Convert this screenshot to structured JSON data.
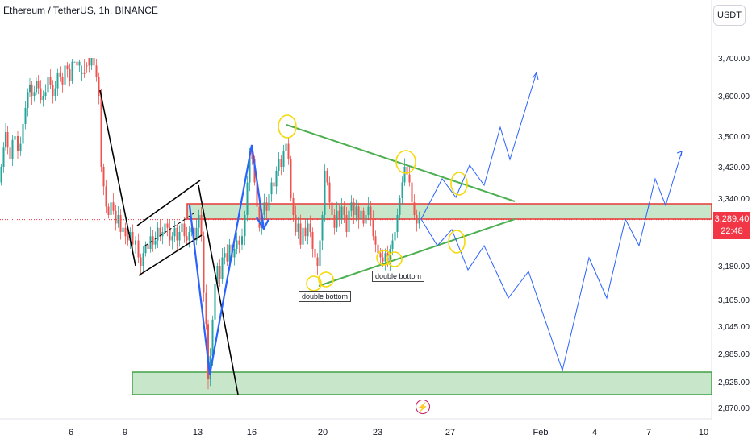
{
  "header": {
    "title": "Ethereum / TetherUS, 1h, BINANCE",
    "currency": "USDT"
  },
  "last_price": {
    "value": "3,289.40",
    "countdown": "22:48"
  },
  "annotations": {
    "left": "double bottom",
    "right": "double bottom"
  },
  "colors": {
    "up": "#26a69a",
    "down": "#ef5350",
    "zone_fill": "#c8e6c9",
    "zone_border_green": "#43a047",
    "zone_border_red": "#e53935",
    "projection": "#2962ff",
    "pattern": "#000000",
    "triangle": "#4caf50",
    "highlight": "#ffeb3b",
    "price_tag": "#f23645"
  },
  "chart_data": {
    "type": "candlestick",
    "title": "Ethereum / TetherUS, 1h, BINANCE",
    "x_ticks": [
      "6",
      "9",
      "13",
      "16",
      "20",
      "23",
      "27",
      "Feb",
      "4",
      "7",
      "10"
    ],
    "y_ticks": [
      3700,
      3600,
      3500,
      3420,
      3340,
      3180,
      3105,
      3045,
      2985,
      2925,
      2870
    ],
    "y_tick_labels": [
      "3,700.00",
      "3,600.00",
      "3,500.00",
      "3,420.00",
      "3,340.00",
      "3,180.00",
      "3,105.00",
      "3,045.00",
      "2,985.00",
      "2,925.00",
      "2,870.00"
    ],
    "ylim": [
      2860,
      3780
    ],
    "last_price": 3289.4,
    "price_path": [
      [
        0,
        3380
      ],
      [
        3,
        3420
      ],
      [
        6,
        3470
      ],
      [
        8,
        3510
      ],
      [
        11,
        3470
      ],
      [
        14,
        3440
      ],
      [
        17,
        3490
      ],
      [
        20,
        3500
      ],
      [
        24,
        3460
      ],
      [
        27,
        3480
      ],
      [
        30,
        3530
      ],
      [
        33,
        3570
      ],
      [
        36,
        3610
      ],
      [
        38,
        3630
      ],
      [
        41,
        3600
      ],
      [
        44,
        3610
      ],
      [
        46,
        3640
      ],
      [
        49,
        3620
      ],
      [
        52,
        3590
      ],
      [
        55,
        3600
      ],
      [
        58,
        3610
      ],
      [
        61,
        3650
      ],
      [
        64,
        3630
      ],
      [
        67,
        3600
      ],
      [
        70,
        3620
      ],
      [
        73,
        3660
      ],
      [
        76,
        3650
      ],
      [
        79,
        3630
      ],
      [
        82,
        3680
      ],
      [
        85,
        3670
      ],
      [
        88,
        3640
      ],
      [
        91,
        3690
      ],
      [
        94,
        3710
      ],
      [
        97,
        3680
      ],
      [
        100,
        3690
      ],
      [
        103,
        3740
      ],
      [
        106,
        3720
      ],
      [
        109,
        3700
      ],
      [
        112,
        3680
      ],
      [
        115,
        3700
      ],
      [
        118,
        3680
      ],
      [
        121,
        3650
      ],
      [
        124,
        3600
      ],
      [
        127,
        3420
      ],
      [
        130,
        3370
      ],
      [
        133,
        3320
      ],
      [
        136,
        3300
      ],
      [
        139,
        3330
      ],
      [
        142,
        3310
      ],
      [
        145,
        3280
      ],
      [
        148,
        3300
      ],
      [
        151,
        3260
      ],
      [
        154,
        3270
      ],
      [
        157,
        3250
      ],
      [
        160,
        3240
      ],
      [
        163,
        3260
      ],
      [
        166,
        3230
      ],
      [
        170,
        3240
      ],
      [
        173,
        3200
      ],
      [
        176,
        3180
      ],
      [
        179,
        3210
      ],
      [
        182,
        3230
      ],
      [
        185,
        3220
      ],
      [
        188,
        3250
      ],
      [
        191,
        3230
      ],
      [
        194,
        3240
      ],
      [
        197,
        3270
      ],
      [
        200,
        3250
      ],
      [
        203,
        3260
      ],
      [
        206,
        3280
      ],
      [
        209,
        3270
      ],
      [
        212,
        3240
      ],
      [
        215,
        3250
      ],
      [
        218,
        3270
      ],
      [
        221,
        3240
      ],
      [
        224,
        3260
      ],
      [
        227,
        3280
      ],
      [
        230,
        3250
      ],
      [
        233,
        3240
      ],
      [
        236,
        3260
      ],
      [
        239,
        3270
      ],
      [
        242,
        3240
      ],
      [
        245,
        3270
      ],
      [
        248,
        3300
      ],
      [
        251,
        3250
      ],
      [
        254,
        3120
      ],
      [
        257,
        3050
      ],
      [
        259,
        2930
      ],
      [
        262,
        2980
      ],
      [
        265,
        3060
      ],
      [
        268,
        3140
      ],
      [
        271,
        3180
      ],
      [
        274,
        3150
      ],
      [
        277,
        3200
      ],
      [
        280,
        3210
      ],
      [
        283,
        3190
      ],
      [
        286,
        3230
      ],
      [
        289,
        3200
      ],
      [
        292,
        3220
      ],
      [
        295,
        3240
      ],
      [
        298,
        3230
      ],
      [
        302,
        3250
      ],
      [
        305,
        3300
      ],
      [
        308,
        3380
      ],
      [
        311,
        3460
      ],
      [
        314,
        3440
      ],
      [
        317,
        3380
      ],
      [
        320,
        3320
      ],
      [
        323,
        3270
      ],
      [
        326,
        3300
      ],
      [
        329,
        3330
      ],
      [
        332,
        3310
      ],
      [
        335,
        3350
      ],
      [
        338,
        3380
      ],
      [
        341,
        3370
      ],
      [
        344,
        3410
      ],
      [
        347,
        3440
      ],
      [
        350,
        3420
      ],
      [
        353,
        3460
      ],
      [
        356,
        3480
      ],
      [
        359,
        3440
      ],
      [
        362,
        3340
      ],
      [
        365,
        3300
      ],
      [
        368,
        3260
      ],
      [
        371,
        3280
      ],
      [
        374,
        3230
      ],
      [
        377,
        3270
      ],
      [
        380,
        3250
      ],
      [
        383,
        3280
      ],
      [
        386,
        3260
      ],
      [
        389,
        3220
      ],
      [
        392,
        3200
      ],
      [
        395,
        3180
      ],
      [
        398,
        3240
      ],
      [
        401,
        3300
      ],
      [
        404,
        3410
      ],
      [
        407,
        3380
      ],
      [
        410,
        3330
      ],
      [
        413,
        3300
      ],
      [
        416,
        3270
      ],
      [
        419,
        3310
      ],
      [
        422,
        3290
      ],
      [
        425,
        3320
      ],
      [
        428,
        3300
      ],
      [
        431,
        3260
      ],
      [
        434,
        3310
      ],
      [
        437,
        3330
      ],
      [
        440,
        3300
      ],
      [
        443,
        3320
      ],
      [
        446,
        3290
      ],
      [
        449,
        3310
      ],
      [
        452,
        3280
      ],
      [
        455,
        3300
      ],
      [
        458,
        3320
      ],
      [
        461,
        3290
      ],
      [
        464,
        3250
      ],
      [
        467,
        3230
      ],
      [
        470,
        3210
      ],
      [
        473,
        3200
      ],
      [
        476,
        3190
      ],
      [
        479,
        3210
      ],
      [
        482,
        3190
      ],
      [
        485,
        3220
      ],
      [
        488,
        3240
      ],
      [
        491,
        3260
      ],
      [
        494,
        3300
      ],
      [
        497,
        3340
      ],
      [
        500,
        3380
      ],
      [
        503,
        3420
      ],
      [
        506,
        3400
      ],
      [
        509,
        3380
      ],
      [
        512,
        3330
      ],
      [
        515,
        3300
      ],
      [
        518,
        3280
      ],
      [
        521,
        3289.4
      ]
    ]
  }
}
